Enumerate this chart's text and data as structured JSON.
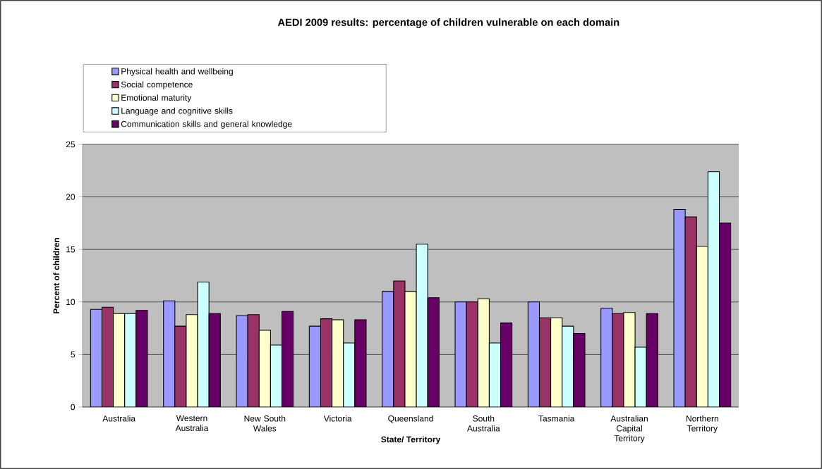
{
  "chart_data": {
    "type": "bar",
    "title": "AEDI 2009 results: percentage of children vulnerable on each domain",
    "xlabel": "State/ Territory",
    "ylabel": "Percent of children",
    "categories": [
      "Australia",
      "Western Australia",
      "New South Wales",
      "Victoria",
      "Queensland",
      "South Australia",
      "Tasmania",
      "Australian Capital Territory",
      "Northern Territory"
    ],
    "series": [
      {
        "name": "Physical health and wellbeing",
        "color": "#9999ff",
        "values": [
          9.3,
          10.1,
          8.7,
          7.7,
          11.0,
          10.0,
          10.0,
          9.4,
          18.8
        ]
      },
      {
        "name": "Social competence",
        "color": "#993366",
        "values": [
          9.5,
          7.7,
          8.8,
          8.4,
          12.0,
          10.0,
          8.5,
          8.9,
          18.1
        ]
      },
      {
        "name": "Emotional maturity",
        "color": "#ffffcc",
        "values": [
          8.9,
          8.8,
          7.3,
          8.3,
          11.0,
          10.3,
          8.5,
          9.0,
          15.3
        ]
      },
      {
        "name": "Language and cognitive skills",
        "color": "#ccffff",
        "values": [
          8.9,
          11.9,
          5.9,
          6.1,
          15.5,
          6.1,
          7.7,
          5.7,
          22.4
        ]
      },
      {
        "name": "Communication skills and general knowledge",
        "color": "#660066",
        "values": [
          9.2,
          8.9,
          9.1,
          8.3,
          10.4,
          8.0,
          7.0,
          8.9,
          17.5
        ]
      }
    ],
    "ylim": [
      0,
      25
    ],
    "yticks": [
      0,
      5,
      10,
      15,
      20,
      25
    ],
    "grid": "y",
    "legend": "top left"
  }
}
